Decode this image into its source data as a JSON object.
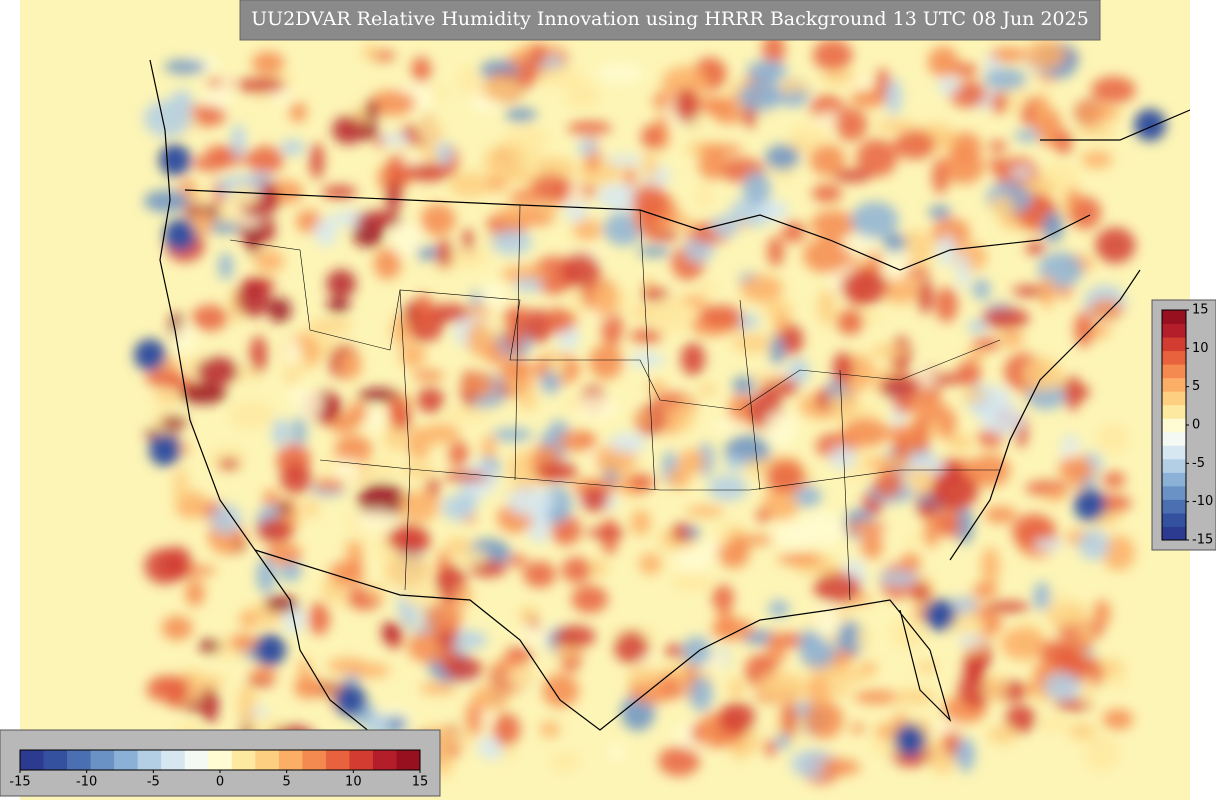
{
  "title": "UU2DVAR Relative Humidity Innovation using HRRR Background 13 UTC 08 Jun 2025",
  "colormap": [
    "#2c3a8f",
    "#34519f",
    "#4b6fb0",
    "#6a92c4",
    "#8cb1d6",
    "#b2cfe6",
    "#d6e7f1",
    "#f4f9f4",
    "#fffbd2",
    "#fee9a0",
    "#fdcf80",
    "#fbae66",
    "#f58a50",
    "#e8623e",
    "#d23c31",
    "#b41e2b",
    "#96101f"
  ],
  "colorbars": [
    {
      "orientation": "horizontal",
      "range": [
        -15,
        15
      ],
      "ticks": [
        -15,
        -10,
        -5,
        0,
        5,
        10,
        15
      ]
    },
    {
      "orientation": "vertical",
      "range": [
        -15,
        15
      ],
      "ticks": [
        15,
        10,
        5,
        0,
        -5,
        -10,
        -15
      ]
    }
  ]
}
